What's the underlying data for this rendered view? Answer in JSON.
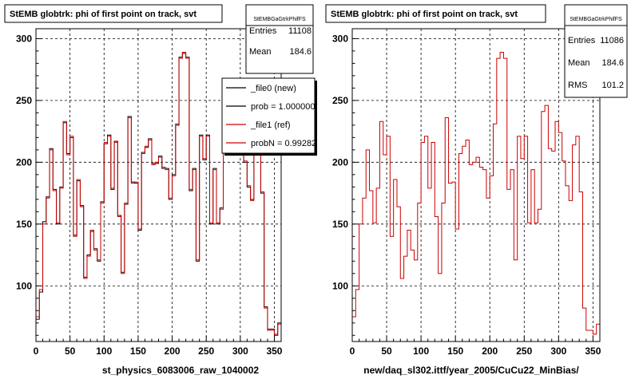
{
  "panels": [
    {
      "title": "StEMB globtrk: phi of first point on track, svt",
      "stats_name": "StEMBGaGtrkPhifFS",
      "stats": [
        {
          "label": "Entries",
          "value": "11108"
        },
        {
          "label": "Mean",
          "value": "184.6"
        }
      ],
      "legend": [
        {
          "label": "_file0 (new)"
        },
        {
          "label": "prob = 1.000000"
        },
        {
          "label": "_file1 (ref)"
        },
        {
          "label": "probN = 0.99282"
        }
      ],
      "xlabel": "st_physics_6083006_raw_1040002"
    },
    {
      "title": "StEMB globtrk: phi of first point on track, svt",
      "stats_name": "StEMBGaGtrkPhifFS",
      "stats": [
        {
          "label": "Entries",
          "value": "11086"
        },
        {
          "label": "Mean",
          "value": "184.6"
        },
        {
          "label": "RMS",
          "value": "101.2"
        }
      ],
      "xlabel": "new/daq_sl302.ittf/year_2005/CuCu22_MinBias/"
    }
  ],
  "chart_data": [
    {
      "type": "histogram",
      "title": "StEMB globtrk: phi of first point on track, svt",
      "xlabel": "st_physics_6083006_raw_1040002",
      "xlim": [
        0,
        360
      ],
      "ylim": [
        55,
        308
      ],
      "xticks": [
        0,
        50,
        100,
        150,
        200,
        250,
        300,
        350
      ],
      "yticks": [
        100,
        150,
        200,
        250,
        300
      ],
      "grid": true,
      "legend_position": "top-right",
      "bin_width": 5,
      "series": [
        {
          "name": "_file0 (new)",
          "color": "#000000",
          "values": [
            73,
            95,
            152,
            172,
            211,
            178,
            150,
            180,
            232,
            207,
            220,
            141,
            185,
            165,
            107,
            125,
            144,
            130,
            120,
            168,
            215,
            222,
            178,
            217,
            157,
            111,
            166,
            237,
            184,
            183,
            145,
            208,
            212,
            219,
            199,
            199,
            205,
            195,
            195,
            170,
            190,
            230,
            285,
            288,
            285,
            177,
            195,
            120,
            222,
            202,
            222,
            150,
            195,
            150,
            163,
            240,
            247,
            210,
            210,
            232,
            225,
            200,
            180,
            170,
            215,
            220,
            175,
            83,
            65,
            65,
            60,
            70
          ]
        },
        {
          "name": "_file1 (ref)",
          "color": "#cc0000",
          "values": [
            75,
            97,
            150,
            171,
            210,
            177,
            151,
            179,
            233,
            206,
            221,
            140,
            186,
            164,
            106,
            124,
            145,
            129,
            121,
            167,
            216,
            221,
            179,
            216,
            156,
            110,
            167,
            236,
            183,
            184,
            146,
            207,
            213,
            218,
            198,
            200,
            204,
            196,
            194,
            171,
            189,
            231,
            284,
            289,
            284,
            178,
            194,
            121,
            221,
            203,
            221,
            151,
            194,
            151,
            162,
            241,
            246,
            211,
            209,
            233,
            224,
            201,
            181,
            169,
            214,
            221,
            176,
            82,
            64,
            64,
            61,
            69
          ]
        }
      ]
    },
    {
      "type": "histogram",
      "title": "StEMB globtrk: phi of first point on track, svt",
      "xlabel": "new/daq_sl302.ittf/year_2005/CuCu22_MinBias/",
      "xlim": [
        0,
        360
      ],
      "ylim": [
        55,
        308
      ],
      "xticks": [
        0,
        50,
        100,
        150,
        200,
        250,
        300,
        350
      ],
      "yticks": [
        100,
        150,
        200,
        250,
        300
      ],
      "grid": true,
      "bin_width": 5,
      "series": [
        {
          "color": "#cc0000",
          "values": [
            75,
            97,
            150,
            171,
            210,
            177,
            151,
            179,
            233,
            206,
            221,
            140,
            186,
            164,
            106,
            124,
            145,
            129,
            121,
            167,
            216,
            221,
            179,
            216,
            156,
            110,
            167,
            236,
            183,
            184,
            146,
            207,
            213,
            218,
            198,
            200,
            204,
            196,
            194,
            171,
            189,
            231,
            284,
            289,
            284,
            178,
            194,
            121,
            221,
            203,
            221,
            151,
            194,
            151,
            162,
            241,
            246,
            211,
            209,
            233,
            224,
            201,
            181,
            169,
            214,
            221,
            176,
            82,
            64,
            64,
            61,
            69
          ]
        }
      ]
    }
  ]
}
